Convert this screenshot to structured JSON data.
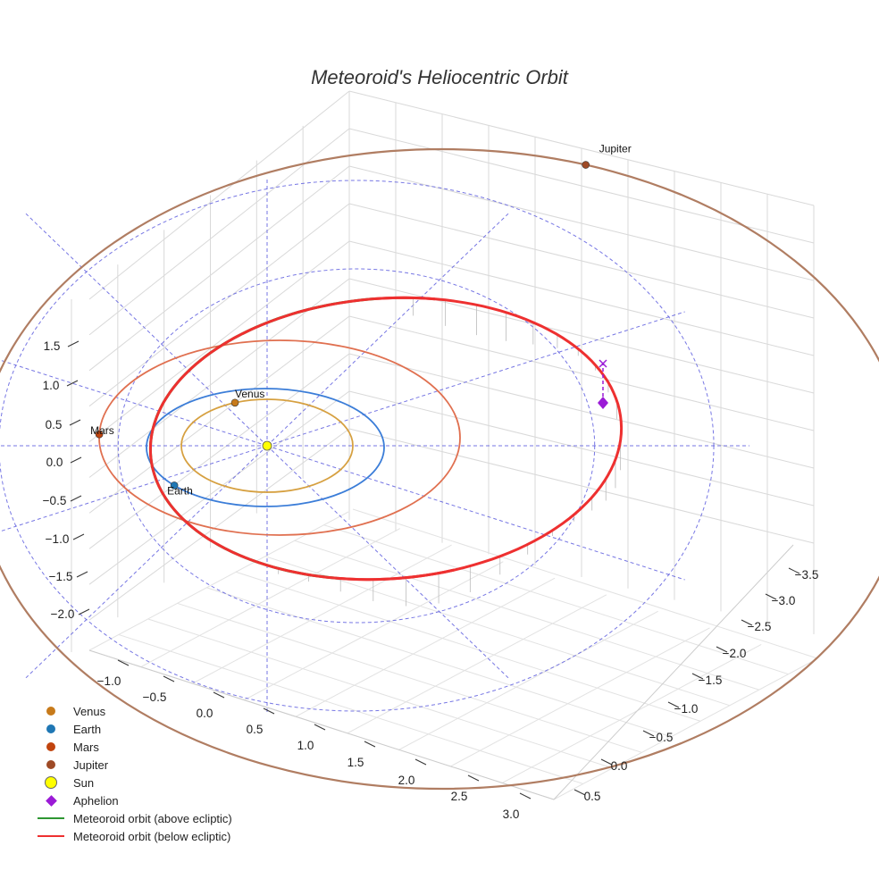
{
  "chart_data": {
    "type": "scatter",
    "projection": "3d",
    "title": "Meteoroid's Heliocentric Orbit",
    "x_axis": {
      "ticks": [
        "−1.0",
        "−0.5",
        "0.0",
        "0.5",
        "1.0",
        "1.5",
        "2.0",
        "2.5",
        "3.0"
      ]
    },
    "y_axis": {
      "ticks": [
        "−3.5",
        "−3.0",
        "−2.5",
        "−2.0",
        "−1.5",
        "−1.0",
        "−0.5",
        "0.0",
        "0.5"
      ]
    },
    "z_axis": {
      "ticks": [
        "1.5",
        "1.0",
        "0.5",
        "0.0",
        "−0.5",
        "−1.0",
        "−1.5",
        "−2.0"
      ]
    },
    "grid": true,
    "ecliptic_reference": {
      "rings_au": [
        2,
        3
      ],
      "radial_lines": 12,
      "color": "#5555dd"
    },
    "planets": [
      {
        "name": "Venus",
        "a_au": 0.72,
        "ecc": 0.0,
        "position_angle_deg": 112,
        "orbit_color": "#d6a040",
        "dot_color": "#c77a1a",
        "label": "Venus"
      },
      {
        "name": "Earth",
        "a_au": 1.0,
        "ecc": 0.017,
        "position_angle_deg": 220,
        "orbit_color": "#3b7dd8",
        "dot_color": "#1f77b4",
        "label": "Earth"
      },
      {
        "name": "Mars",
        "a_au": 1.52,
        "ecc": 0.093,
        "position_angle_deg": 178,
        "orbit_color": "#e07050",
        "dot_color": "#c1440e",
        "label": "Mars"
      },
      {
        "name": "Jupiter",
        "a_au": 5.2,
        "ecc": 0.049,
        "position_angle_deg": 72,
        "orbit_color": "#b07d62",
        "dot_color": "#9e4a26",
        "label": "Jupiter"
      }
    ],
    "sun": {
      "name": "Sun",
      "color": "#ffff00"
    },
    "meteoroid_orbit": {
      "segments": [
        {
          "name": "Meteoroid orbit (above ecliptic)",
          "color": "#2e9632"
        },
        {
          "name": "Meteoroid orbit (below ecliptic)",
          "color": "#ee3030"
        }
      ]
    },
    "aphelion": {
      "name": "Aphelion",
      "color": "#9b1bd6"
    }
  },
  "legend": [
    {
      "label": "Venus",
      "symbol": "dot",
      "color": "#c77a1a"
    },
    {
      "label": "Earth",
      "symbol": "dot",
      "color": "#1f77b4"
    },
    {
      "label": "Mars",
      "symbol": "dot",
      "color": "#c1440e"
    },
    {
      "label": "Jupiter",
      "symbol": "dot",
      "color": "#9e4a26"
    },
    {
      "label": "Sun",
      "symbol": "sun",
      "color": "#ffff00"
    },
    {
      "label": "Aphelion",
      "symbol": "diamond",
      "color": "#9b1bd6"
    },
    {
      "label": "Meteoroid orbit (above ecliptic)",
      "symbol": "line",
      "color": "#2e9632"
    },
    {
      "label": "Meteoroid orbit (below ecliptic)",
      "symbol": "line",
      "color": "#ee3030"
    }
  ]
}
